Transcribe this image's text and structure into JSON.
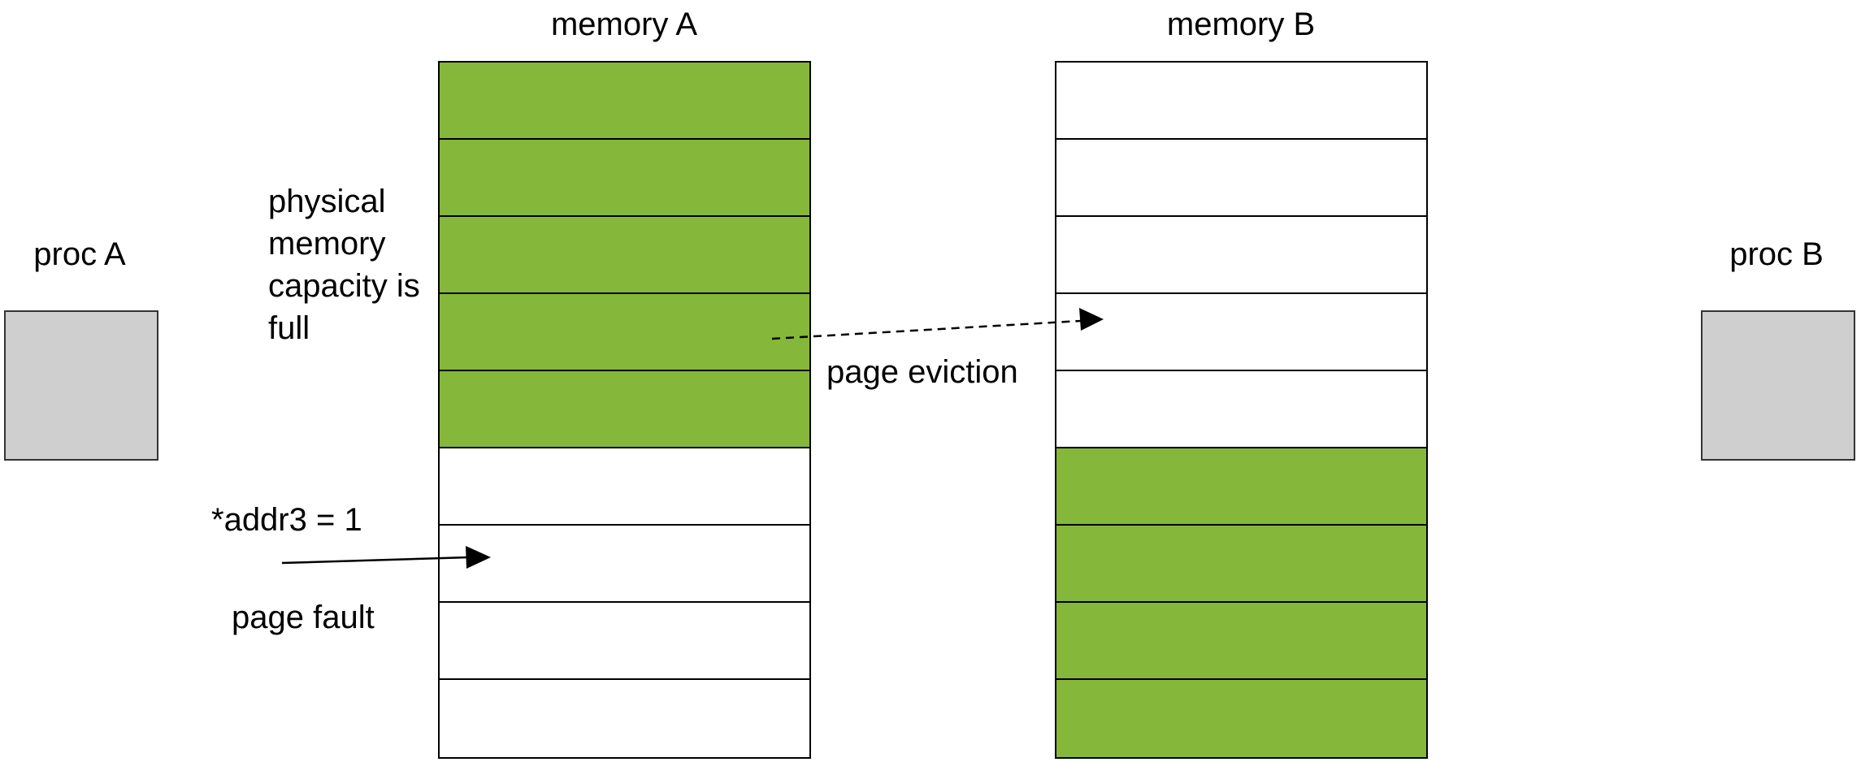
{
  "colors": {
    "page_used": "#85b73a",
    "page_free": "#ffffff",
    "process_box": "#cfcfcf"
  },
  "processes": {
    "a": {
      "label": "proc A"
    },
    "b": {
      "label": "proc B"
    }
  },
  "memories": {
    "a": {
      "label": "memory A",
      "pages": [
        "used",
        "used",
        "used",
        "used",
        "used",
        "free",
        "free",
        "free",
        "free"
      ]
    },
    "b": {
      "label": "memory B",
      "pages": [
        "free",
        "free",
        "free",
        "free",
        "free",
        "used",
        "used",
        "used",
        "used"
      ]
    }
  },
  "annotations": {
    "capacity_full": "physical memory capacity is full",
    "write_op": "*addr3 = 1",
    "page_fault": "page fault",
    "page_eviction": "page eviction"
  }
}
